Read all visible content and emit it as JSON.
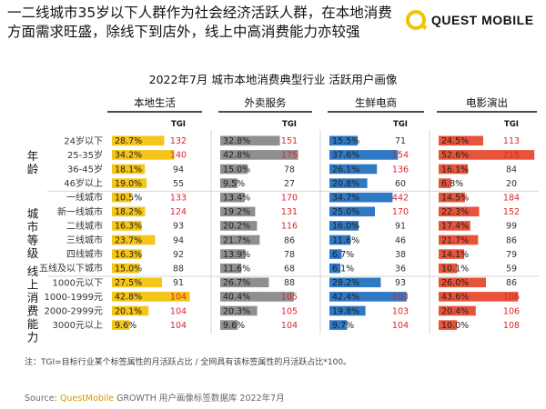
{
  "headline": "一二线城市35岁以下人群作为社会经济活跃人群，在本地消费方面需求旺盛，除线下到店外，线上中高消费能力亦较强",
  "logo": {
    "text": "QUEST MOBILE"
  },
  "chart_data": {
    "type": "table",
    "title": "2022年7月 城市本地消费典型行业 活跃用户画像",
    "column_label": "TGI",
    "groups": [
      {
        "label": "年龄",
        "rows": [
          "24岁以下",
          "25-35岁",
          "36-45岁",
          "46岁以上"
        ]
      },
      {
        "label": "城市等级",
        "rows": [
          "一线城市",
          "新一线城市",
          "二线城市",
          "三线城市",
          "四线城市",
          "五线及以下城市"
        ]
      },
      {
        "label": "线上消费能力",
        "rows": [
          "1000元以下",
          "1000-1999元",
          "2000-2999元",
          "3000元以上"
        ]
      }
    ],
    "series": [
      {
        "name": "本地生活",
        "color": "#f5c518",
        "values": [
          28.7,
          34.2,
          18.1,
          19.0,
          10.5,
          18.2,
          16.3,
          23.7,
          16.3,
          15.0,
          27.5,
          42.8,
          20.1,
          9.6
        ],
        "display": [
          "28.7%",
          "34.2%",
          "18.1%",
          "19.0%",
          "10.5%",
          "18.2%",
          "16.3%",
          "23.7%",
          "16.3%",
          "15.0%",
          "27.5%",
          "42.8%",
          "20.1%",
          "9.6%"
        ],
        "tgi": [
          132,
          140,
          94,
          55,
          133,
          124,
          93,
          94,
          92,
          88,
          91,
          104,
          104,
          104
        ]
      },
      {
        "name": "外卖服务",
        "color": "#8f8f8f",
        "values": [
          32.8,
          42.8,
          15.0,
          9.5,
          13.4,
          19.2,
          20.2,
          21.7,
          13.9,
          11.6,
          26.7,
          40.4,
          20.3,
          9.6
        ],
        "display": [
          "32.8%",
          "42.8%",
          "15.0%",
          "9.5%",
          "13.4%",
          "19.2%",
          "20.2%",
          "21.7%",
          "13.9%",
          "11.6%",
          "26.7%",
          "40.4%",
          "20.3%",
          "9.6%"
        ],
        "tgi": [
          151,
          175,
          78,
          27,
          170,
          131,
          116,
          86,
          78,
          68,
          88,
          105,
          105,
          104
        ]
      },
      {
        "name": "生鲜电商",
        "color": "#2f78c4",
        "values": [
          15.5,
          37.6,
          26.1,
          20.8,
          34.7,
          25.0,
          16.0,
          11.6,
          6.7,
          6.1,
          28.2,
          42.4,
          19.8,
          9.7
        ],
        "display": [
          "15.5%",
          "37.6%",
          "26.1%",
          "20.8%",
          "34.7%",
          "25.0%",
          "16.0%",
          "11.6%",
          "6.7%",
          "6.1%",
          "28.2%",
          "42.4%",
          "19.8%",
          "9.7%"
        ],
        "tgi": [
          71,
          154,
          136,
          60,
          442,
          170,
          91,
          46,
          38,
          36,
          93,
          103,
          103,
          104
        ]
      },
      {
        "name": "电影演出",
        "color": "#e8543a",
        "values": [
          24.5,
          52.6,
          16.1,
          6.8,
          14.5,
          22.3,
          17.4,
          21.7,
          14.1,
          10.1,
          26.0,
          43.6,
          20.4,
          10.0
        ],
        "display": [
          "24.5%",
          "52.6%",
          "16.1%",
          "6.8%",
          "14.5%",
          "22.3%",
          "17.4%",
          "21.7%",
          "14.1%",
          "10.1%",
          "26.0%",
          "43.6%",
          "20.4%",
          "10.0%"
        ],
        "tgi": [
          113,
          215,
          84,
          20,
          184,
          152,
          99,
          86,
          79,
          59,
          86,
          106,
          106,
          108
        ]
      }
    ],
    "note": "注：TGI=目标行业某个标签属性的月活跃占比 / 全网具有该标签属性的月活跃占比*100。"
  },
  "source": {
    "label": "Source:",
    "brand": "QuestMobile",
    "text": " GROWTH 用户画像标签数据库 2022年7月"
  }
}
